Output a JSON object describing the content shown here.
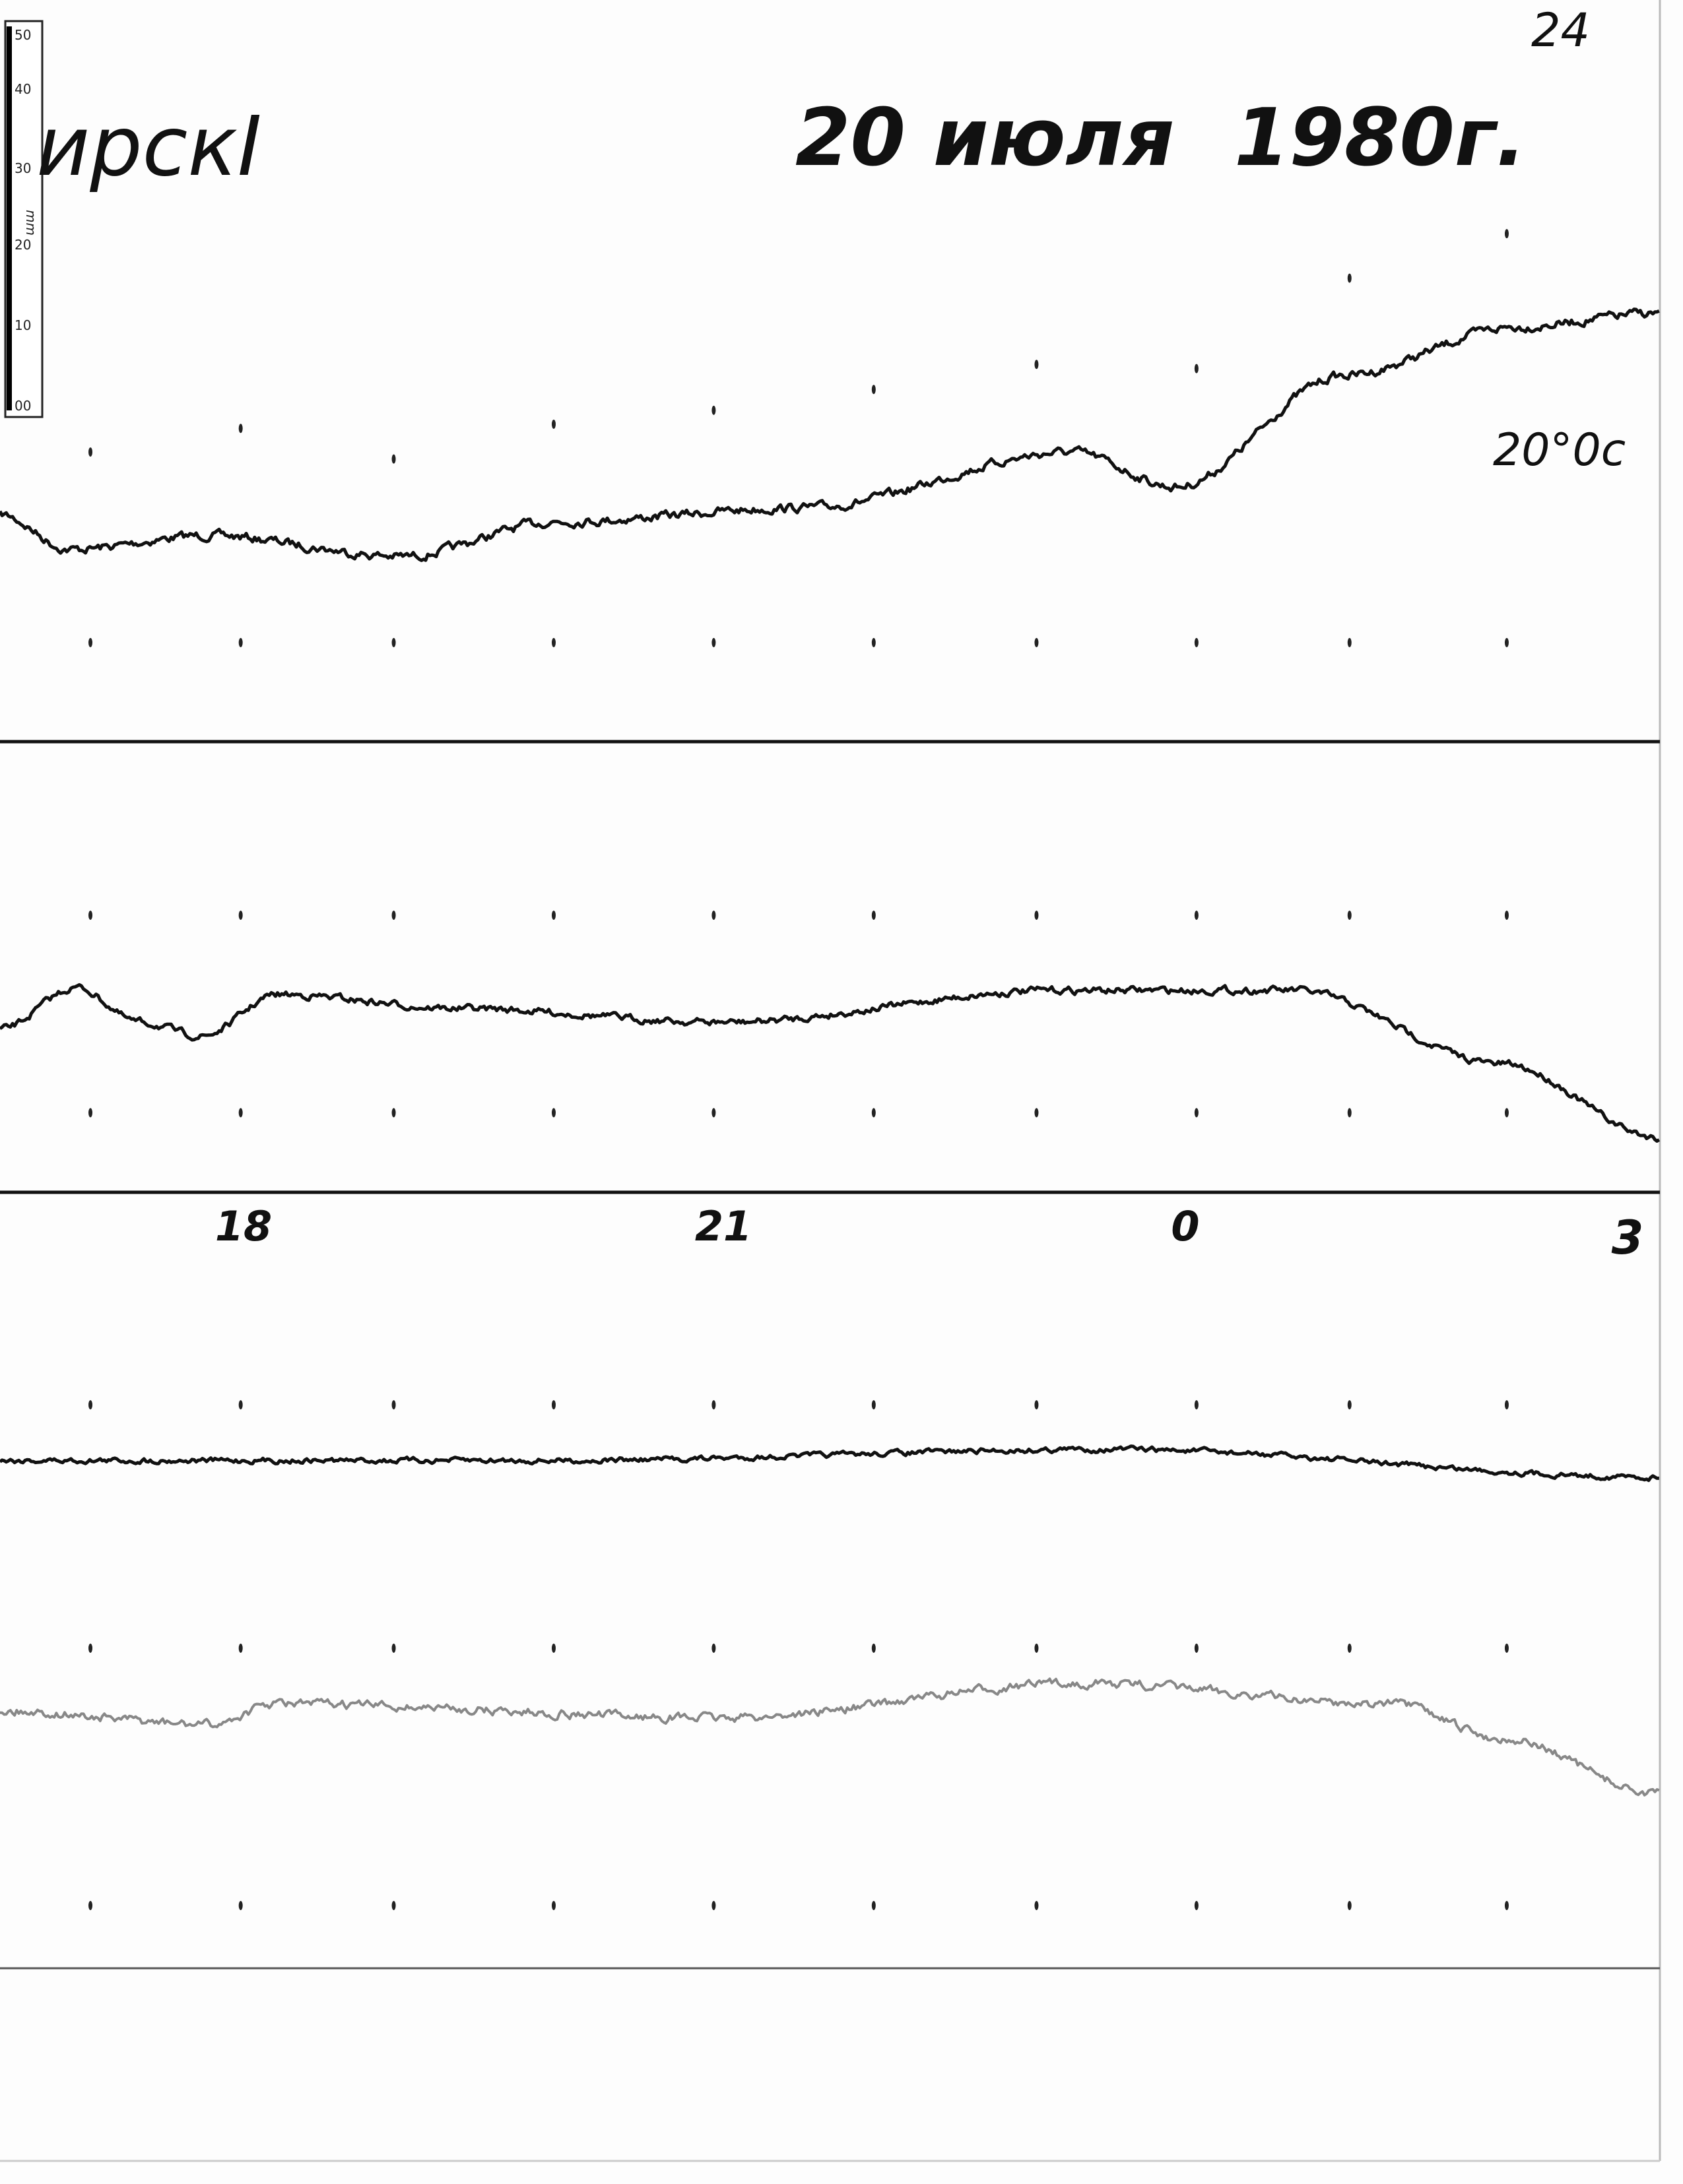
{
  "page_number": "24",
  "header": {
    "station": "ирскI",
    "date": "20 июля",
    "year": "1980г."
  },
  "annotation": "20°0c",
  "time_labels": [
    "18",
    "21",
    "0",
    "3"
  ],
  "ruler": {
    "labels": [
      "50",
      "40",
      "30",
      "20",
      "10",
      "00"
    ],
    "unit": "mm"
  }
}
